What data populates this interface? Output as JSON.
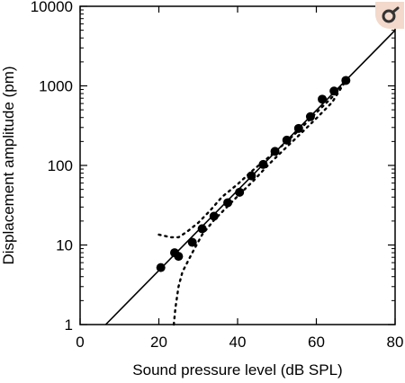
{
  "chart_data": {
    "type": "scatter",
    "title": "",
    "xlabel": "Sound pressure level (dB SPL)",
    "ylabel": "Displacement amplitude (pm)",
    "xlim": [
      0,
      80
    ],
    "ylim": [
      1,
      10000
    ],
    "yscale": "log",
    "xticks": [
      0,
      20,
      40,
      60,
      80
    ],
    "yticks": [
      1,
      10,
      100,
      1000,
      10000
    ],
    "xtick_labels": [
      "0",
      "20",
      "40",
      "60",
      "80"
    ],
    "ytick_labels": [
      "1",
      "10",
      "100",
      "1000",
      "10000"
    ],
    "grid": false,
    "legend": "none",
    "series": [
      {
        "kind": "points",
        "x": [
          20.5,
          24.0,
          25.0,
          28.5,
          31.0,
          34.0,
          37.5,
          40.5,
          43.5,
          46.5,
          49.5,
          52.5,
          55.5,
          58.5,
          61.5,
          64.5,
          67.5
        ],
        "y": [
          5.2,
          8.0,
          7.2,
          10.8,
          16,
          23,
          34,
          46,
          74,
          103,
          150,
          208,
          292,
          410,
          680,
          860,
          1170
        ]
      },
      {
        "kind": "fit-line",
        "x": [
          6.5,
          80
        ],
        "y": [
          1,
          5000
        ]
      },
      {
        "kind": "error-bound-upper",
        "x": [
          20,
          23,
          25,
          27,
          30,
          33,
          36,
          40,
          44,
          48,
          52,
          56,
          60,
          64,
          67.5
        ],
        "y": [
          13.5,
          12.5,
          12.5,
          14.5,
          19,
          27,
          40,
          58,
          88,
          128,
          190,
          290,
          460,
          720,
          1170
        ]
      },
      {
        "kind": "error-bound-lower",
        "x": [
          23.8,
          24.2,
          25,
          26,
          28.5,
          31,
          34,
          37,
          40,
          44,
          48,
          52,
          56,
          60,
          64,
          67.5
        ],
        "y": [
          1,
          1.6,
          3.0,
          4.6,
          8.0,
          13.5,
          20.5,
          29,
          41,
          64,
          104,
          162,
          250,
          390,
          620,
          1170
        ]
      }
    ],
    "colors": {
      "points": "#000000",
      "lines": "#000000",
      "badge": "#f3d9cb",
      "badge_icon": "#333333"
    }
  }
}
